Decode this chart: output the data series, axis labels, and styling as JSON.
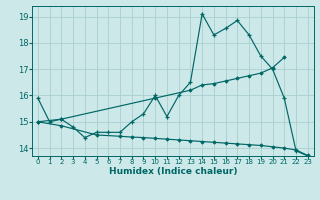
{
  "title": "",
  "xlabel": "Humidex (Indice chaleur)",
  "ylabel": "",
  "bg_color": "#cce8e8",
  "grid_color": "#aacfcf",
  "line_color": "#006666",
  "spine_color": "#006666",
  "xlim": [
    -0.5,
    23.5
  ],
  "ylim": [
    13.7,
    19.4
  ],
  "yticks": [
    14,
    15,
    16,
    17,
    18,
    19
  ],
  "xticks": [
    0,
    1,
    2,
    3,
    4,
    5,
    6,
    7,
    8,
    9,
    10,
    11,
    12,
    13,
    14,
    15,
    16,
    17,
    18,
    19,
    20,
    21,
    22,
    23
  ],
  "curve1_x": [
    0,
    1,
    2,
    3,
    4,
    5,
    6,
    7,
    8,
    9,
    10,
    11,
    12,
    13,
    14,
    15,
    16,
    17,
    18,
    19,
    20,
    21,
    22,
    23
  ],
  "curve1_y": [
    15.9,
    15.0,
    15.1,
    14.8,
    14.4,
    14.6,
    14.6,
    14.6,
    15.0,
    15.3,
    16.0,
    15.2,
    16.0,
    16.5,
    19.1,
    18.3,
    18.55,
    18.85,
    18.3,
    17.5,
    17.0,
    15.9,
    13.9,
    13.7
  ],
  "curve2_x": [
    0,
    2,
    10,
    13,
    14,
    15,
    16,
    17,
    18,
    19,
    20,
    21
  ],
  "curve2_y": [
    15.0,
    15.1,
    15.9,
    16.2,
    16.4,
    16.45,
    16.55,
    16.65,
    16.75,
    16.85,
    17.05,
    17.45
  ],
  "curve3_x": [
    0,
    2,
    5,
    7,
    8,
    9,
    10,
    11,
    12,
    13,
    14,
    15,
    16,
    17,
    18,
    19,
    20,
    21,
    22,
    23
  ],
  "curve3_y": [
    15.0,
    14.85,
    14.5,
    14.45,
    14.42,
    14.4,
    14.37,
    14.34,
    14.31,
    14.28,
    14.25,
    14.22,
    14.19,
    14.16,
    14.13,
    14.1,
    14.05,
    14.0,
    13.93,
    13.72
  ]
}
